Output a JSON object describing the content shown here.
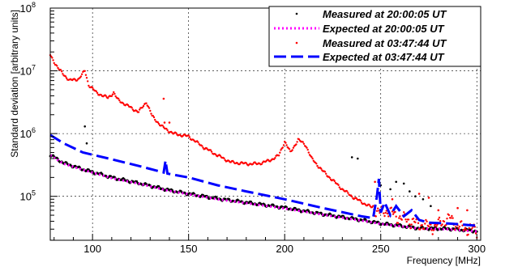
{
  "chart_data": {
    "type": "line",
    "title": "",
    "xlabel": "Frequency [MHz]",
    "ylabel": "Standard deviation [arbitrary units]",
    "xlim": [
      78,
      302
    ],
    "ylim_log10": [
      4.3,
      8
    ],
    "yscale": "log",
    "grid": true,
    "legend_position": "top-right",
    "x_ticks": [
      100,
      150,
      200,
      250,
      300
    ],
    "y_ticks": [
      {
        "base": "10",
        "exp": "5",
        "value": 100000
      },
      {
        "base": "10",
        "exp": "6",
        "value": 1000000
      },
      {
        "base": "10",
        "exp": "7",
        "value": 10000000
      },
      {
        "base": "10",
        "exp": "8",
        "value": 100000000
      }
    ],
    "series": [
      {
        "name": "Measured at 20:00:05 UT",
        "style": "markers",
        "color": "#000000",
        "x": [
          78,
          85,
          95,
          110,
          125,
          140,
          150,
          165,
          180,
          200,
          220,
          240,
          250,
          260,
          270,
          285,
          300
        ],
        "y": [
          460000,
          340000,
          270000,
          200000,
          160000,
          125000,
          110000,
          92000,
          80000,
          66000,
          52000,
          42000,
          37000,
          34000,
          31000,
          30500,
          28000
        ],
        "outliers": [
          {
            "x": 96,
            "y": 1300000
          },
          {
            "x": 97,
            "y": 700000
          },
          {
            "x": 235,
            "y": 420000
          },
          {
            "x": 238,
            "y": 400000
          },
          {
            "x": 250,
            "y": 150000
          },
          {
            "x": 255,
            "y": 130000
          },
          {
            "x": 258,
            "y": 170000
          },
          {
            "x": 262,
            "y": 160000
          },
          {
            "x": 265,
            "y": 120000
          },
          {
            "x": 268,
            "y": 100000
          },
          {
            "x": 272,
            "y": 90000
          },
          {
            "x": 276,
            "y": 70000
          }
        ]
      },
      {
        "name": "Expected at 20:00:05 UT",
        "style": "dotted",
        "color": "#ff00ff",
        "x": [
          78,
          85,
          95,
          110,
          125,
          140,
          150,
          165,
          180,
          200,
          220,
          240,
          250,
          260,
          270,
          285,
          300
        ],
        "y": [
          450000,
          330000,
          265000,
          195000,
          157000,
          122000,
          108000,
          90000,
          78000,
          64000,
          51000,
          41000,
          36500,
          33500,
          30500,
          30000,
          27500
        ]
      },
      {
        "name": "Measured at 03:47:44 UT",
        "style": "markers",
        "color": "#ff0000",
        "x": [
          78,
          82,
          88,
          93,
          96,
          98,
          102,
          108,
          111,
          113,
          118,
          124,
          128,
          131,
          136,
          142,
          150,
          158,
          165,
          172,
          180,
          186,
          192,
          197,
          200,
          203,
          207,
          211,
          214,
          220,
          225,
          230,
          236,
          242,
          246,
          250,
          254,
          258,
          262,
          266,
          270,
          274,
          278,
          282,
          286,
          290,
          294,
          297,
          300
        ],
        "y": [
          18000000,
          11000000,
          7000000,
          7500000,
          10000000,
          6000000,
          4500000,
          3700000,
          4500000,
          3500000,
          2800000,
          2200000,
          3200000,
          1900000,
          1300000,
          1000000,
          900000,
          600000,
          450000,
          350000,
          330000,
          330000,
          370000,
          450000,
          750000,
          500000,
          800000,
          650000,
          400000,
          250000,
          180000,
          130000,
          95000,
          75000,
          65000,
          55000,
          60000,
          48000,
          45000,
          40000,
          36000,
          34000,
          33000,
          40000,
          45000,
          35000,
          30000,
          32000,
          27000
        ],
        "outliers": [
          {
            "x": 137,
            "y": 3600000
          },
          {
            "x": 137.5,
            "y": 1500000
          },
          {
            "x": 140,
            "y": 1500000
          },
          {
            "x": 247,
            "y": 170000
          },
          {
            "x": 256,
            "y": 90000
          },
          {
            "x": 270,
            "y": 110000
          },
          {
            "x": 275,
            "y": 95000
          },
          {
            "x": 280,
            "y": 60000
          },
          {
            "x": 290,
            "y": 65000
          },
          {
            "x": 295,
            "y": 60000
          }
        ]
      },
      {
        "name": "Expected at 03:47:44 UT",
        "style": "dashed",
        "color": "#0000ff",
        "x": [
          78,
          85,
          95,
          110,
          125,
          137,
          138,
          139,
          150,
          165,
          180,
          200,
          220,
          240,
          246,
          248,
          249,
          250,
          252,
          255,
          258,
          262,
          266,
          270,
          275,
          285,
          300
        ],
        "y": [
          950000,
          700000,
          500000,
          390000,
          300000,
          240000,
          370000,
          230000,
          200000,
          150000,
          120000,
          90000,
          65000,
          48000,
          45000,
          100000,
          190000,
          55000,
          80000,
          50000,
          70000,
          48000,
          60000,
          42000,
          38000,
          37000,
          34000
        ]
      }
    ]
  }
}
